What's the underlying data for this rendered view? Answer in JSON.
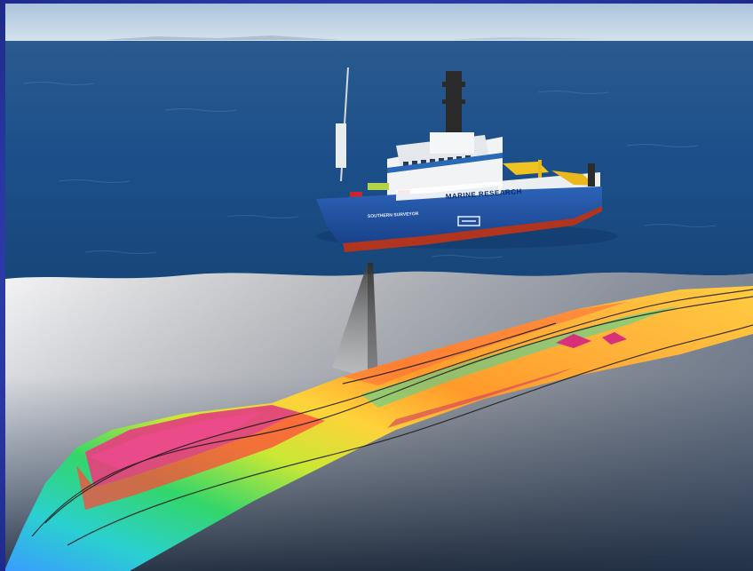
{
  "image": {
    "subject": "Research vessel on the ocean with a multibeam sonar swath and a rainbow-coloured seafloor bathymetry map below",
    "vessel": {
      "superstructure_text": "MARINE RESEARCH",
      "bow_name": "SOUTHERN SURVEYOR"
    },
    "colors": {
      "border": "#2f3fb0",
      "sky": "#bfd4e6",
      "sea": "#1e4f8a",
      "hull": "#1c4fa0",
      "boot_top": "#b0341e",
      "bathymetry_deep": "#e0407a",
      "bathymetry_mid": "#36d06a",
      "bathymetry_shallow": "#ff9a2a"
    }
  }
}
